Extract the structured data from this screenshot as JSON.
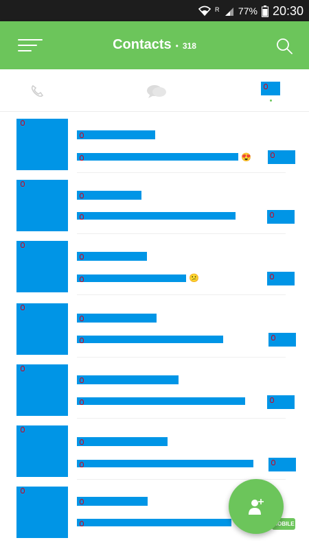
{
  "status_bar": {
    "battery": "77%",
    "time": "20:30",
    "icons": [
      "wifi-icon",
      "roaming-icon",
      "signal-icon",
      "battery-icon"
    ]
  },
  "app_bar": {
    "title": "Contacts",
    "separator": "•",
    "count": "318",
    "icons": [
      "menu-icon",
      "search-icon"
    ]
  },
  "tabs": [
    {
      "name": "calls",
      "icon": "phone-icon"
    },
    {
      "name": "chats",
      "icon": "chat-bubbles-icon"
    },
    {
      "name": "contacts",
      "icon": "contacts-icon"
    }
  ],
  "contacts": [
    {
      "name": "",
      "status": "",
      "status_emoji": "😍"
    },
    {
      "name": "",
      "status": ""
    },
    {
      "name": "",
      "status": "",
      "status_emoji": "😕"
    },
    {
      "name": "",
      "status": ""
    },
    {
      "name": "",
      "status": ""
    },
    {
      "name": "",
      "status": ""
    },
    {
      "name": "",
      "status": ""
    }
  ],
  "fab": {
    "icon": "add-contact-icon"
  },
  "mobile_tag": "MOBILE",
  "colors": {
    "primary_green": "#6cc55b",
    "status_bar": "#1d1d1d",
    "redaction_blue": "#0095e6"
  }
}
